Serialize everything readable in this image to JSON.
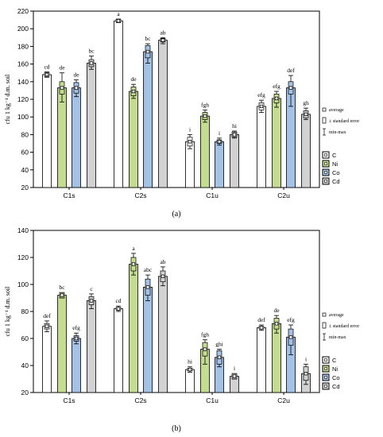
{
  "chart_data": [
    {
      "type": "bar",
      "panel_label": "(a)",
      "ylabel": "cfu 1 kg⁻¹ d.m. soil",
      "ylim": [
        20,
        220
      ],
      "yticks": [
        20,
        40,
        60,
        80,
        100,
        120,
        140,
        160,
        180,
        200,
        220
      ],
      "categories": [
        "C1s",
        "C2s",
        "C1u",
        "C2u"
      ],
      "series": [
        {
          "name": "C",
          "color": "#ffffff",
          "values": [
            148,
            209,
            72,
            112
          ],
          "se": [
            2,
            1.5,
            5,
            4
          ],
          "minmax": [
            [
              145,
              151
            ],
            [
              207,
              211
            ],
            [
              64,
              80
            ],
            [
              105,
              119
            ]
          ],
          "letters": [
            "cd",
            "a",
            "i",
            "efg"
          ]
        },
        {
          "name": "Ni",
          "color": "#c3dc8f",
          "values": [
            133,
            129,
            101,
            121
          ],
          "se": [
            7,
            5,
            4,
            5
          ],
          "minmax": [
            [
              117,
              150
            ],
            [
              121,
              137
            ],
            [
              94,
              108
            ],
            [
              111,
              129
            ]
          ],
          "letters": [
            "de",
            "de",
            "fgh",
            "efg"
          ]
        },
        {
          "name": "Co",
          "color": "#a4c2e6",
          "values": [
            133,
            174,
            72,
            133
          ],
          "se": [
            6,
            7,
            2,
            7
          ],
          "minmax": [
            [
              123,
              142
            ],
            [
              161,
              183
            ],
            [
              68,
              76
            ],
            [
              112,
              147
            ]
          ],
          "letters": [
            "de",
            "bc",
            "i",
            "def"
          ]
        },
        {
          "name": "Cd",
          "color": "#d2d2d2",
          "values": [
            161,
            187,
            80,
            103
          ],
          "se": [
            4,
            2,
            3,
            4
          ],
          "minmax": [
            [
              154,
              169
            ],
            [
              183,
              190
            ],
            [
              76,
              84
            ],
            [
              97,
              110
            ]
          ],
          "letters": [
            "bc",
            "ab",
            "hi",
            "gh"
          ]
        }
      ],
      "legend_stats": [
        "average",
        "± standard error",
        "min-max"
      ],
      "legend_position": "right"
    },
    {
      "type": "bar",
      "panel_label": "(b)",
      "ylabel": "cfu 1 kg⁻¹ d.m. soil",
      "ylim": [
        20,
        140
      ],
      "yticks": [
        20,
        40,
        60,
        80,
        100,
        120,
        140
      ],
      "categories": [
        "C1s",
        "C2s",
        "C1u",
        "C2u"
      ],
      "series": [
        {
          "name": "C",
          "color": "#ffffff",
          "values": [
            69,
            82,
            37,
            68
          ],
          "se": [
            2,
            1,
            1,
            1
          ],
          "minmax": [
            [
              65,
              73
            ],
            [
              80,
              84
            ],
            [
              35,
              39
            ],
            [
              66,
              70
            ]
          ],
          "letters": [
            "def",
            "cd",
            "hi",
            "def"
          ]
        },
        {
          "name": "Ni",
          "color": "#c3dc8f",
          "values": [
            92,
            115,
            52,
            71
          ],
          "se": [
            2,
            5,
            5,
            4
          ],
          "minmax": [
            [
              90,
              94
            ],
            [
              107,
              123
            ],
            [
              41,
              59
            ],
            [
              64,
              77
            ]
          ],
          "letters": [
            "bc",
            "a",
            "fgh",
            "de"
          ]
        },
        {
          "name": "Co",
          "color": "#a4c2e6",
          "values": [
            60,
            98,
            46,
            61
          ],
          "se": [
            2,
            6,
            5,
            6
          ],
          "minmax": [
            [
              56,
              64
            ],
            [
              88,
              107
            ],
            [
              39,
              52
            ],
            [
              48,
              70
            ]
          ],
          "letters": [
            "efg",
            "abc",
            "ghi",
            "efg"
          ]
        },
        {
          "name": "Cd",
          "color": "#d2d2d2",
          "values": [
            88,
            106,
            32,
            34
          ],
          "se": [
            3,
            4,
            2,
            5
          ],
          "minmax": [
            [
              82,
              93
            ],
            [
              99,
              113
            ],
            [
              30,
              34
            ],
            [
              26,
              41
            ]
          ],
          "letters": [
            "c",
            "ab",
            "i",
            "i"
          ]
        }
      ],
      "legend_stats": [
        "average",
        "± standard error",
        "min-max"
      ],
      "legend_position": "right"
    }
  ]
}
